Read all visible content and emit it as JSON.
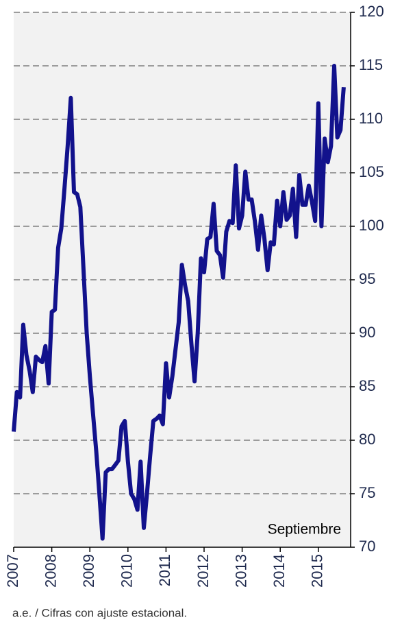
{
  "chart_data": {
    "type": "line",
    "annotation": "Septiembre",
    "footnote": "a.e. / Cifras con ajuste estacional.",
    "categories": [
      "2007",
      null,
      null,
      null,
      null,
      null,
      null,
      null,
      null,
      null,
      null,
      null,
      "2008",
      null,
      null,
      null,
      null,
      null,
      null,
      null,
      null,
      null,
      null,
      null,
      "2009",
      null,
      null,
      null,
      null,
      null,
      null,
      null,
      null,
      null,
      null,
      null,
      "2010",
      null,
      null,
      null,
      null,
      null,
      null,
      null,
      null,
      null,
      null,
      null,
      "2011",
      null,
      null,
      null,
      null,
      null,
      null,
      null,
      null,
      null,
      null,
      null,
      "2012",
      null,
      null,
      null,
      null,
      null,
      null,
      null,
      null,
      null,
      null,
      null,
      "2013",
      null,
      null,
      null,
      null,
      null,
      null,
      null,
      null,
      null,
      null,
      null,
      "2014",
      null,
      null,
      null,
      null,
      null,
      null,
      null,
      null,
      null,
      null,
      null,
      "2015",
      null,
      null,
      null,
      null,
      null,
      null,
      null,
      null
    ],
    "series": [
      {
        "color": "#12128c",
        "values": [
          80.8,
          84.5,
          84,
          90.8,
          88,
          86.5,
          84.5,
          87.8,
          87.5,
          87.3,
          88.8,
          85.3,
          92,
          92.2,
          98,
          99.8,
          103.5,
          107.5,
          112,
          103.2,
          103,
          101.8,
          96,
          90,
          86,
          82.5,
          79,
          75,
          70.8,
          77,
          77.3,
          77.3,
          77.7,
          78.1,
          81.3,
          81.8,
          78,
          75,
          74.5,
          73.5,
          78,
          71.8,
          75,
          78.5,
          81.8,
          82,
          82.3,
          81.5,
          87.2,
          84,
          86,
          88.5,
          91,
          96.4,
          94.5,
          93,
          89,
          85.5,
          90,
          97,
          95.7,
          98.8,
          99,
          102.1,
          97.7,
          97.3,
          95.2,
          99.5,
          100.5,
          100.3,
          105.7,
          99.8,
          101,
          105.1,
          102.5,
          102.5,
          100.5,
          97.8,
          101,
          98.9,
          95.9,
          98.5,
          98.3,
          102.4,
          100,
          103.2,
          100.6,
          101,
          103.5,
          99,
          104.8,
          102,
          102,
          103.8,
          102.3,
          100.5,
          111.5,
          100,
          108.2,
          106,
          107.5,
          115,
          108.3,
          109,
          113
        ]
      }
    ],
    "ylim": [
      70,
      120
    ],
    "yticks": [
      70,
      75,
      80,
      85,
      90,
      95,
      100,
      105,
      110,
      115,
      120
    ],
    "grid": true,
    "y_axis_side": "right"
  }
}
